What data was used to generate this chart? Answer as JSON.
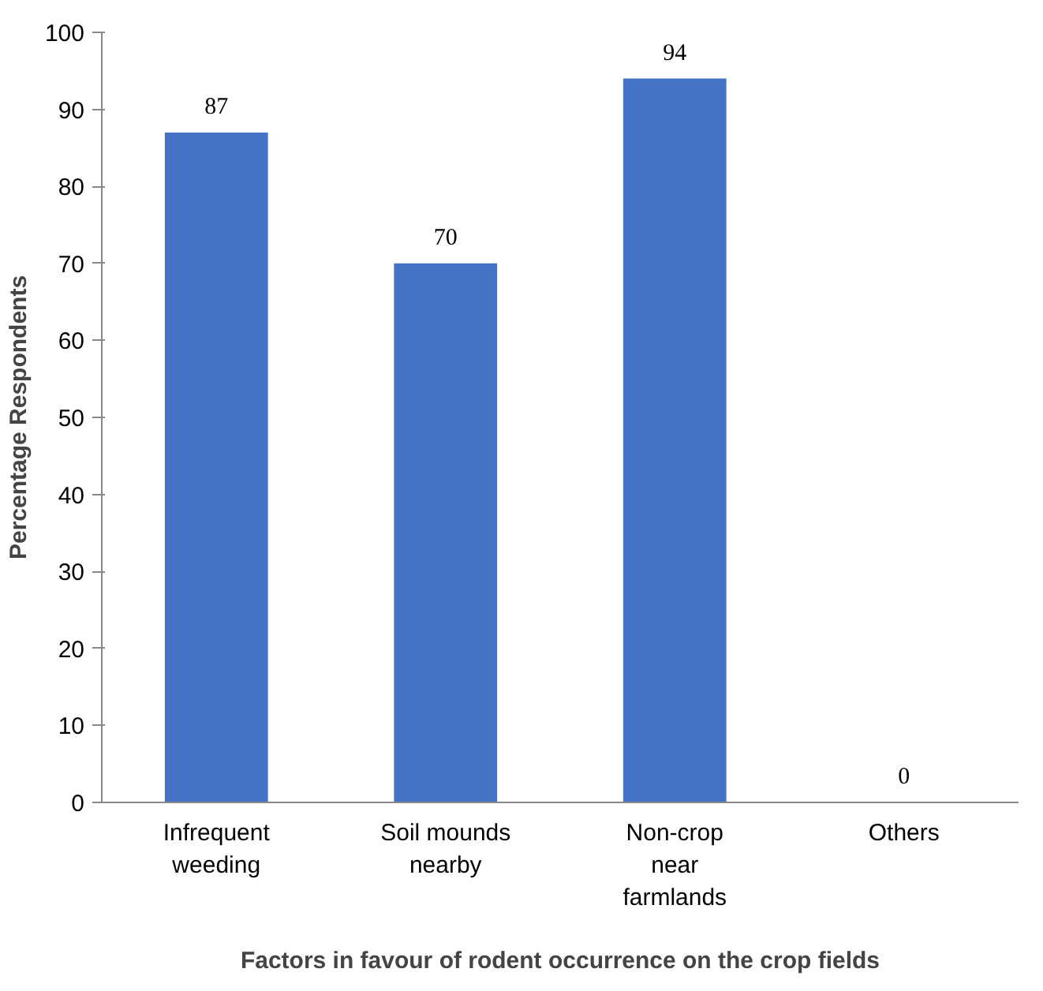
{
  "chart_data": {
    "type": "bar",
    "categories": [
      "Infrequent\nweeding",
      "Soil mounds\nnearby",
      "Non-crop\nnear\nfarmlands",
      "Others"
    ],
    "values": [
      87,
      70,
      94,
      0
    ],
    "color": "#4472c4",
    "ylabel": "Percentage Respondents",
    "xlabel": "Factors in favour of rodent occurrence on the crop fields",
    "ylim": [
      0,
      100
    ],
    "yticks": [
      0,
      10,
      20,
      30,
      40,
      50,
      60,
      70,
      80,
      90,
      100
    ],
    "data_labels": true,
    "grid": false
  }
}
